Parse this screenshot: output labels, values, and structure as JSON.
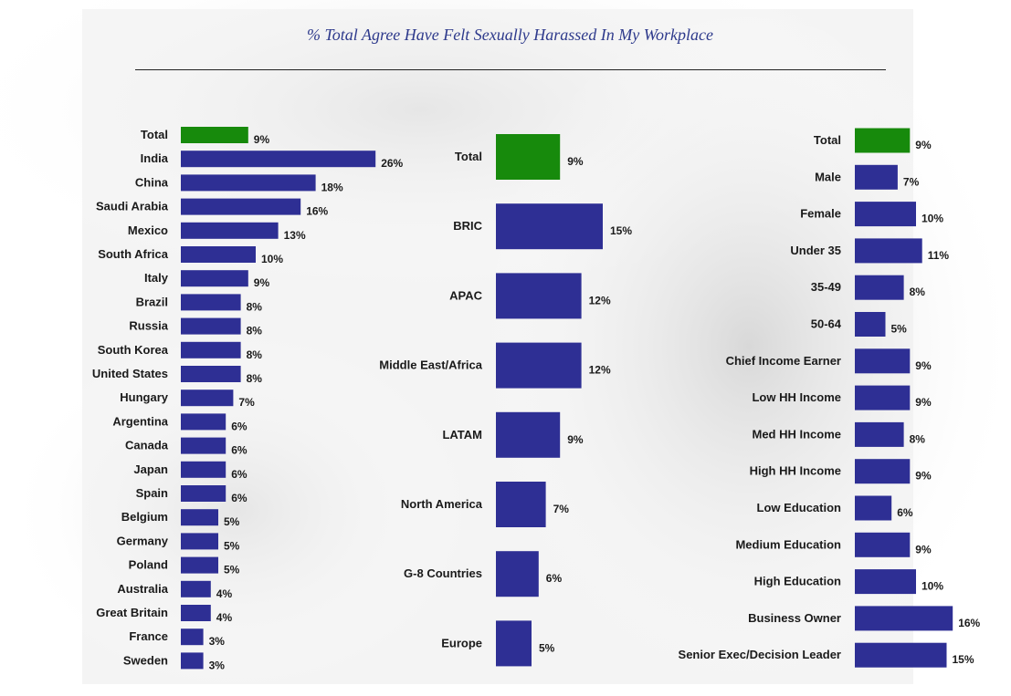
{
  "colors": {
    "total": "#178a0c",
    "bar": "#2e2f94"
  },
  "title": "% Total Agree Have Felt Sexually Harassed In My Workplace",
  "chart_data": [
    {
      "type": "bar",
      "orientation": "horizontal",
      "categories": [
        "Total",
        "India",
        "China",
        "Saudi Arabia",
        "Mexico",
        "South Africa",
        "Italy",
        "Brazil",
        "Russia",
        "South Korea",
        "United States",
        "Hungary",
        "Argentina",
        "Canada",
        "Japan",
        "Spain",
        "Belgium",
        "Germany",
        "Poland",
        "Australia",
        "Great Britain",
        "France",
        "Sweden"
      ],
      "values": [
        9,
        26,
        18,
        16,
        13,
        10,
        9,
        8,
        8,
        8,
        8,
        7,
        6,
        6,
        6,
        6,
        5,
        5,
        5,
        4,
        4,
        3,
        3
      ],
      "value_labels": [
        "9%",
        "26%",
        "18%",
        "16%",
        "13%",
        "10%",
        "9%",
        "8%",
        "8%",
        "8%",
        "8%",
        "7%",
        "6%",
        "6%",
        "6%",
        "6%",
        "5%",
        "5%",
        "5%",
        "4%",
        "4%",
        "3%",
        "3%"
      ]
    },
    {
      "type": "bar",
      "orientation": "horizontal",
      "categories": [
        "Total",
        "BRIC",
        "APAC",
        "Middle East/Africa",
        "LATAM",
        "North America",
        "G-8 Countries",
        "Europe"
      ],
      "values": [
        9,
        15,
        12,
        12,
        9,
        7,
        6,
        5
      ],
      "value_labels": [
        "9%",
        "15%",
        "12%",
        "12%",
        "9%",
        "7%",
        "6%",
        "5%"
      ]
    },
    {
      "type": "bar",
      "orientation": "horizontal",
      "categories": [
        "Total",
        "Male",
        "Female",
        "Under 35",
        "35-49",
        "50-64",
        "Chief Income Earner",
        "Low HH Income",
        "Med HH Income",
        "High HH Income",
        "Low Education",
        "Medium Education",
        "High Education",
        "Business Owner",
        "Senior Exec/Decision  Leader"
      ],
      "values": [
        9,
        7,
        10,
        11,
        8,
        5,
        9,
        9,
        8,
        9,
        6,
        9,
        10,
        16,
        15
      ],
      "value_labels": [
        "9%",
        "7%",
        "10%",
        "11%",
        "8%",
        "5%",
        "9%",
        "9%",
        "8%",
        "9%",
        "6%",
        "9%",
        "10%",
        "16%",
        "15%"
      ]
    }
  ]
}
